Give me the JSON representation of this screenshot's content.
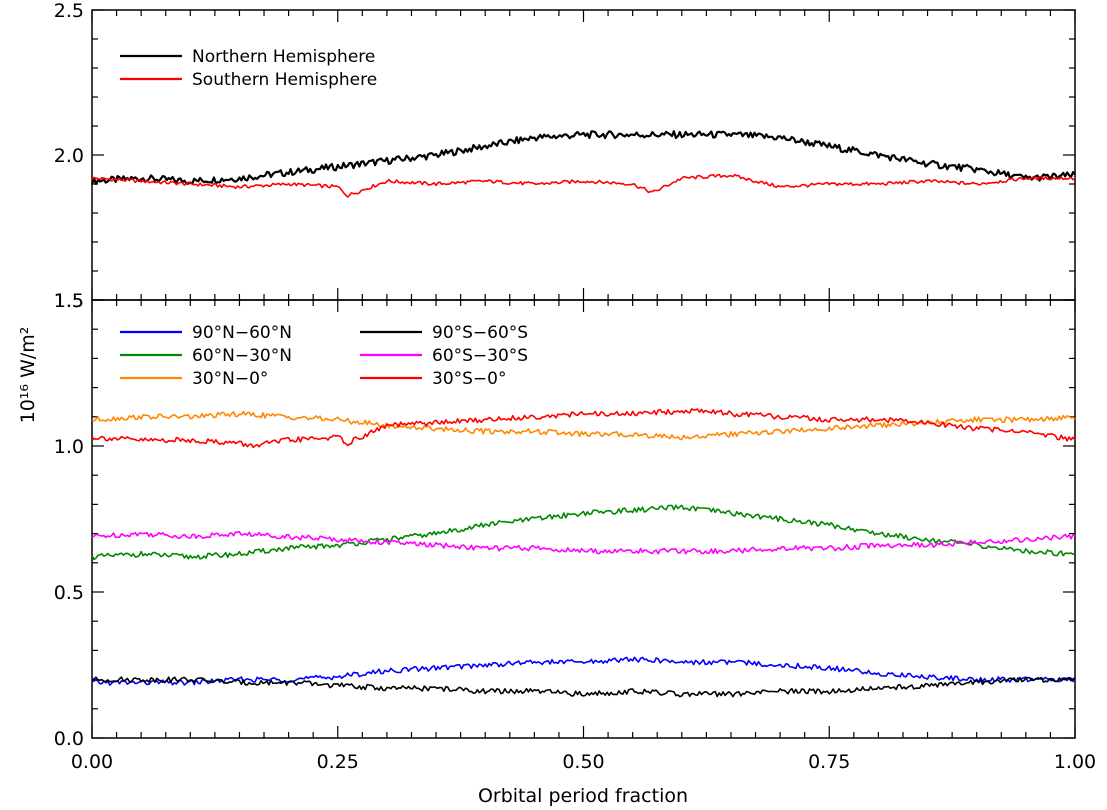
{
  "chart_data": [
    {
      "type": "line",
      "panel": "top",
      "xlim": [
        0,
        1
      ],
      "ylim": [
        1.5,
        2.5
      ],
      "xlabel": "",
      "ylabel": "",
      "y_ticks": [
        "1.5",
        "2.0",
        "2.5"
      ],
      "y_tick_values": [
        1.5,
        2.0,
        2.5
      ],
      "legend_position": "top-left",
      "series": [
        {
          "name": "Northern Hemisphere",
          "color": "#000000",
          "x": [
            0.0,
            0.05,
            0.1,
            0.15,
            0.2,
            0.25,
            0.3,
            0.35,
            0.4,
            0.45,
            0.5,
            0.55,
            0.6,
            0.65,
            0.7,
            0.75,
            0.8,
            0.85,
            0.9,
            0.95,
            1.0
          ],
          "y": [
            1.91,
            1.92,
            1.91,
            1.92,
            1.94,
            1.96,
            1.98,
            2.0,
            2.03,
            2.06,
            2.07,
            2.07,
            2.07,
            2.07,
            2.06,
            2.03,
            2.0,
            1.97,
            1.95,
            1.92,
            1.93
          ]
        },
        {
          "name": "Southern Hemisphere",
          "color": "#ff0000",
          "x": [
            0.0,
            0.05,
            0.1,
            0.15,
            0.2,
            0.25,
            0.26,
            0.3,
            0.35,
            0.4,
            0.45,
            0.5,
            0.55,
            0.57,
            0.6,
            0.65,
            0.7,
            0.75,
            0.8,
            0.85,
            0.9,
            0.95,
            1.0
          ],
          "y": [
            1.92,
            1.91,
            1.9,
            1.89,
            1.9,
            1.89,
            1.86,
            1.91,
            1.9,
            1.91,
            1.9,
            1.91,
            1.9,
            1.87,
            1.92,
            1.93,
            1.89,
            1.9,
            1.9,
            1.91,
            1.9,
            1.92,
            1.92
          ]
        }
      ]
    },
    {
      "type": "line",
      "panel": "bottom",
      "xlim": [
        0,
        1
      ],
      "ylim": [
        0,
        1.5
      ],
      "xlabel": "Orbital period fraction",
      "ylabel": "10¹⁶ W/m²",
      "x_ticks": [
        "0.00",
        "0.25",
        "0.50",
        "0.75",
        "1.00"
      ],
      "x_tick_values": [
        0,
        0.25,
        0.5,
        0.75,
        1.0
      ],
      "y_ticks": [
        "0.0",
        "0.5",
        "1.0",
        "1.5"
      ],
      "y_tick_values": [
        0,
        0.5,
        1.0,
        1.5
      ],
      "legend_position": "top-left",
      "series": [
        {
          "name": "90°N−60°N",
          "color": "#0000ff",
          "x": [
            0.0,
            0.05,
            0.1,
            0.15,
            0.2,
            0.25,
            0.3,
            0.35,
            0.4,
            0.45,
            0.5,
            0.55,
            0.6,
            0.65,
            0.7,
            0.75,
            0.8,
            0.85,
            0.9,
            0.95,
            1.0
          ],
          "y": [
            0.19,
            0.19,
            0.19,
            0.2,
            0.2,
            0.21,
            0.23,
            0.24,
            0.25,
            0.26,
            0.26,
            0.27,
            0.26,
            0.26,
            0.25,
            0.24,
            0.22,
            0.21,
            0.2,
            0.2,
            0.2
          ]
        },
        {
          "name": "60°N−30°N",
          "color": "#008800",
          "x": [
            0.0,
            0.05,
            0.1,
            0.15,
            0.2,
            0.25,
            0.3,
            0.35,
            0.4,
            0.45,
            0.5,
            0.55,
            0.6,
            0.65,
            0.7,
            0.75,
            0.8,
            0.85,
            0.9,
            0.95,
            1.0
          ],
          "y": [
            0.62,
            0.63,
            0.62,
            0.63,
            0.65,
            0.66,
            0.68,
            0.7,
            0.73,
            0.75,
            0.77,
            0.78,
            0.79,
            0.77,
            0.75,
            0.73,
            0.7,
            0.68,
            0.66,
            0.64,
            0.63
          ]
        },
        {
          "name": "30°N−0°",
          "color": "#ff8800",
          "x": [
            0.0,
            0.05,
            0.1,
            0.15,
            0.2,
            0.25,
            0.3,
            0.35,
            0.4,
            0.45,
            0.5,
            0.55,
            0.6,
            0.65,
            0.7,
            0.75,
            0.8,
            0.85,
            0.9,
            0.95,
            1.0
          ],
          "y": [
            1.09,
            1.1,
            1.1,
            1.11,
            1.1,
            1.09,
            1.07,
            1.06,
            1.05,
            1.05,
            1.04,
            1.04,
            1.03,
            1.04,
            1.05,
            1.06,
            1.07,
            1.08,
            1.09,
            1.09,
            1.1
          ]
        },
        {
          "name": "90°S−60°S",
          "color": "#000000",
          "x": [
            0.0,
            0.05,
            0.1,
            0.15,
            0.2,
            0.25,
            0.3,
            0.35,
            0.4,
            0.45,
            0.5,
            0.55,
            0.6,
            0.65,
            0.7,
            0.75,
            0.8,
            0.85,
            0.9,
            0.95,
            1.0
          ],
          "y": [
            0.2,
            0.2,
            0.2,
            0.19,
            0.19,
            0.18,
            0.17,
            0.17,
            0.16,
            0.16,
            0.15,
            0.16,
            0.15,
            0.15,
            0.16,
            0.16,
            0.17,
            0.18,
            0.19,
            0.2,
            0.2
          ]
        },
        {
          "name": "60°S−30°S",
          "color": "#ff00ff",
          "x": [
            0.0,
            0.05,
            0.1,
            0.15,
            0.2,
            0.25,
            0.3,
            0.35,
            0.4,
            0.45,
            0.5,
            0.55,
            0.6,
            0.65,
            0.7,
            0.75,
            0.8,
            0.85,
            0.9,
            0.95,
            1.0
          ],
          "y": [
            0.69,
            0.7,
            0.69,
            0.7,
            0.69,
            0.68,
            0.67,
            0.66,
            0.65,
            0.65,
            0.64,
            0.64,
            0.64,
            0.64,
            0.65,
            0.65,
            0.66,
            0.66,
            0.67,
            0.68,
            0.69
          ]
        },
        {
          "name": "30°S−0°",
          "color": "#ff0000",
          "x": [
            0.0,
            0.05,
            0.1,
            0.15,
            0.16,
            0.2,
            0.25,
            0.26,
            0.3,
            0.35,
            0.4,
            0.45,
            0.5,
            0.55,
            0.6,
            0.63,
            0.65,
            0.7,
            0.75,
            0.8,
            0.85,
            0.9,
            0.95,
            1.0
          ],
          "y": [
            1.03,
            1.02,
            1.02,
            1.01,
            1.0,
            1.02,
            1.03,
            1.01,
            1.07,
            1.08,
            1.09,
            1.1,
            1.11,
            1.11,
            1.12,
            1.12,
            1.11,
            1.1,
            1.09,
            1.09,
            1.08,
            1.06,
            1.05,
            1.02
          ]
        }
      ]
    }
  ]
}
